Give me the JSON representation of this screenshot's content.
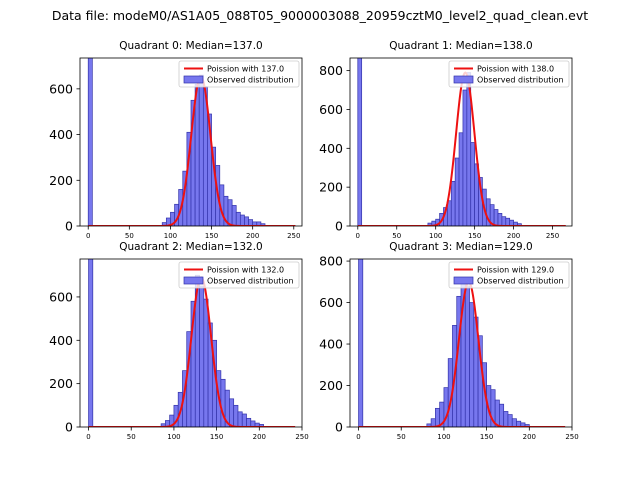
{
  "figure": {
    "suptitle": "Data file: modeM0/AS1A05_088T05_9000003088_20959cztM0_level2_quad_clean.evt"
  },
  "colors": {
    "hist_fill": "#7777ee",
    "hist_edge": "#3333aa",
    "fit_line": "#ee1111",
    "axes": "#000000"
  },
  "chart_data": [
    {
      "type": "bar",
      "title": "Quadrant 0: Median=137.0",
      "median": 137.0,
      "legend": {
        "line": "Poission with 137.0",
        "bars": "Observed distribution",
        "position": "top-right"
      },
      "xlim": [
        -10,
        260
      ],
      "ylim": [
        0,
        735
      ],
      "xticks": [
        0,
        50,
        100,
        150,
        200,
        250
      ],
      "yticks": [
        0,
        200,
        400,
        600
      ],
      "bin_width": 5,
      "bins": [
        [
          0,
          1000
        ],
        [
          90,
          15
        ],
        [
          95,
          35
        ],
        [
          100,
          60
        ],
        [
          105,
          95
        ],
        [
          110,
          160
        ],
        [
          115,
          240
        ],
        [
          120,
          410
        ],
        [
          125,
          550
        ],
        [
          130,
          620
        ],
        [
          135,
          660
        ],
        [
          140,
          610
        ],
        [
          145,
          490
        ],
        [
          150,
          345
        ],
        [
          155,
          265
        ],
        [
          160,
          180
        ],
        [
          165,
          130
        ],
        [
          170,
          115
        ],
        [
          175,
          90
        ],
        [
          180,
          60
        ],
        [
          185,
          48
        ],
        [
          190,
          40
        ],
        [
          195,
          28
        ],
        [
          200,
          18
        ],
        [
          205,
          18
        ],
        [
          210,
          10
        ]
      ],
      "poisson_peak": 655
    },
    {
      "type": "bar",
      "title": "Quadrant 1: Median=138.0",
      "median": 138.0,
      "legend": {
        "line": "Poission with 138.0",
        "bars": "Observed distribution",
        "position": "top-right"
      },
      "xlim": [
        -10,
        275
      ],
      "ylim": [
        0,
        865
      ],
      "xticks": [
        0,
        50,
        100,
        150,
        200,
        250
      ],
      "yticks": [
        0,
        200,
        400,
        600,
        800
      ],
      "bin_width": 5,
      "bins": [
        [
          0,
          1000
        ],
        [
          90,
          15
        ],
        [
          95,
          25
        ],
        [
          100,
          35
        ],
        [
          105,
          65
        ],
        [
          110,
          95
        ],
        [
          115,
          130
        ],
        [
          120,
          230
        ],
        [
          125,
          350
        ],
        [
          130,
          480
        ],
        [
          135,
          700
        ],
        [
          140,
          790
        ],
        [
          145,
          430
        ],
        [
          150,
          320
        ],
        [
          155,
          250
        ],
        [
          160,
          190
        ],
        [
          165,
          140
        ],
        [
          170,
          110
        ],
        [
          175,
          85
        ],
        [
          180,
          65
        ],
        [
          185,
          48
        ],
        [
          190,
          40
        ],
        [
          195,
          30
        ],
        [
          200,
          20
        ],
        [
          205,
          12
        ]
      ],
      "poisson_peak": 790
    },
    {
      "type": "bar",
      "title": "Quadrant 2: Median=132.0",
      "median": 132.0,
      "legend": {
        "line": "Poission with 132.0",
        "bars": "Observed distribution",
        "position": "top-right"
      },
      "xlim": [
        -10,
        250
      ],
      "ylim": [
        0,
        775
      ],
      "xticks": [
        0,
        50,
        100,
        150,
        200,
        250
      ],
      "yticks": [
        0,
        200,
        400,
        600
      ],
      "bin_width": 5,
      "bins": [
        [
          0,
          1000
        ],
        [
          85,
          15
        ],
        [
          90,
          30
        ],
        [
          95,
          55
        ],
        [
          100,
          100
        ],
        [
          105,
          160
        ],
        [
          110,
          260
        ],
        [
          115,
          440
        ],
        [
          120,
          580
        ],
        [
          125,
          700
        ],
        [
          130,
          650
        ],
        [
          135,
          590
        ],
        [
          140,
          480
        ],
        [
          145,
          400
        ],
        [
          150,
          260
        ],
        [
          155,
          220
        ],
        [
          160,
          170
        ],
        [
          165,
          130
        ],
        [
          170,
          100
        ],
        [
          175,
          70
        ],
        [
          180,
          60
        ],
        [
          185,
          40
        ],
        [
          190,
          28
        ],
        [
          195,
          18
        ],
        [
          200,
          12
        ]
      ],
      "poisson_peak": 690
    },
    {
      "type": "bar",
      "title": "Quadrant 3: Median=129.0",
      "median": 129.0,
      "legend": {
        "line": "Poission with 129.0",
        "bars": "Observed distribution",
        "position": "top-right"
      },
      "xlim": [
        -10,
        250
      ],
      "ylim": [
        0,
        810
      ],
      "xticks": [
        0,
        50,
        100,
        150,
        200,
        250
      ],
      "yticks": [
        0,
        200,
        400,
        600,
        800
      ],
      "bin_width": 5,
      "bins": [
        [
          0,
          1000
        ],
        [
          80,
          15
        ],
        [
          85,
          40
        ],
        [
          90,
          90
        ],
        [
          95,
          120
        ],
        [
          100,
          190
        ],
        [
          105,
          330
        ],
        [
          110,
          490
        ],
        [
          115,
          630
        ],
        [
          120,
          710
        ],
        [
          125,
          680
        ],
        [
          130,
          600
        ],
        [
          135,
          530
        ],
        [
          140,
          440
        ],
        [
          145,
          310
        ],
        [
          150,
          200
        ],
        [
          155,
          180
        ],
        [
          160,
          130
        ],
        [
          165,
          110
        ],
        [
          170,
          75
        ],
        [
          175,
          60
        ],
        [
          180,
          40
        ],
        [
          185,
          28
        ],
        [
          190,
          20
        ],
        [
          195,
          12
        ]
      ],
      "poisson_peak": 700
    }
  ]
}
